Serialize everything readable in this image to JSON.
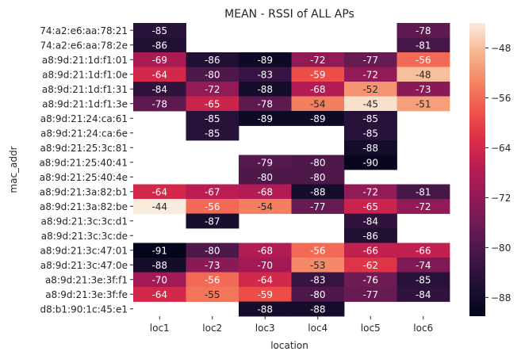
{
  "chart_data": {
    "type": "heatmap",
    "title": "MEAN - RSSI of ALL APs",
    "xlabel": "location",
    "ylabel": "mac_addr",
    "columns": [
      "loc1",
      "loc2",
      "loc3",
      "loc4",
      "loc5",
      "loc6"
    ],
    "rows": [
      "74:a2:e6:aa:78:21",
      "74:a2:e6:aa:78:2e",
      "a8:9d:21:1d:f1:01",
      "a8:9d:21:1d:f1:0e",
      "a8:9d:21:1d:f1:31",
      "a8:9d:21:1d:f1:3e",
      "a8:9d:21:24:ca:61",
      "a8:9d:21:24:ca:6e",
      "a8:9d:21:25:3c:81",
      "a8:9d:21:25:40:41",
      "a8:9d:21:25:40:4e",
      "a8:9d:21:3a:82:b1",
      "a8:9d:21:3a:82:be",
      "a8:9d:21:3c:3c:d1",
      "a8:9d:21:3c:3c:de",
      "a8:9d:21:3c:47:01",
      "a8:9d:21:3c:47:0e",
      "a8:9d:21:3e:3f:f1",
      "a8:9d:21:3e:3f:fe",
      "d8:b1:90:1c:45:e1"
    ],
    "values": [
      [
        -85,
        null,
        null,
        null,
        null,
        -78
      ],
      [
        -86,
        null,
        null,
        null,
        null,
        -81
      ],
      [
        -69,
        -86,
        -89,
        -72,
        -77,
        -56
      ],
      [
        -64,
        -80,
        -83,
        -59,
        -72,
        -48
      ],
      [
        -84,
        -72,
        -88,
        -68,
        -52,
        -73
      ],
      [
        -78,
        -65,
        -78,
        -54,
        -45,
        -51
      ],
      [
        null,
        -85,
        -89,
        -89,
        -85,
        null
      ],
      [
        null,
        -85,
        null,
        null,
        -85,
        null
      ],
      [
        null,
        null,
        null,
        null,
        -88,
        null
      ],
      [
        null,
        null,
        -79,
        -80,
        -90,
        null
      ],
      [
        null,
        null,
        -80,
        -80,
        null,
        null
      ],
      [
        -64,
        -67,
        -68,
        -88,
        -72,
        -81
      ],
      [
        -44,
        -56,
        -54,
        -77,
        -65,
        -72
      ],
      [
        null,
        -87,
        null,
        null,
        -84,
        null
      ],
      [
        null,
        null,
        null,
        null,
        -86,
        null
      ],
      [
        -91,
        -80,
        -68,
        -56,
        -66,
        -66
      ],
      [
        -88,
        -73,
        -70,
        -53,
        -62,
        -74
      ],
      [
        -70,
        -56,
        -64,
        -83,
        -76,
        -85
      ],
      [
        -64,
        -55,
        -59,
        -80,
        -77,
        -84
      ],
      [
        null,
        null,
        -88,
        -88,
        null,
        null
      ]
    ],
    "colorbar": {
      "range": [
        -91,
        -44
      ],
      "ticks": [
        -48,
        -56,
        -64,
        -72,
        -80,
        -88
      ],
      "colormap": "rocket"
    }
  }
}
